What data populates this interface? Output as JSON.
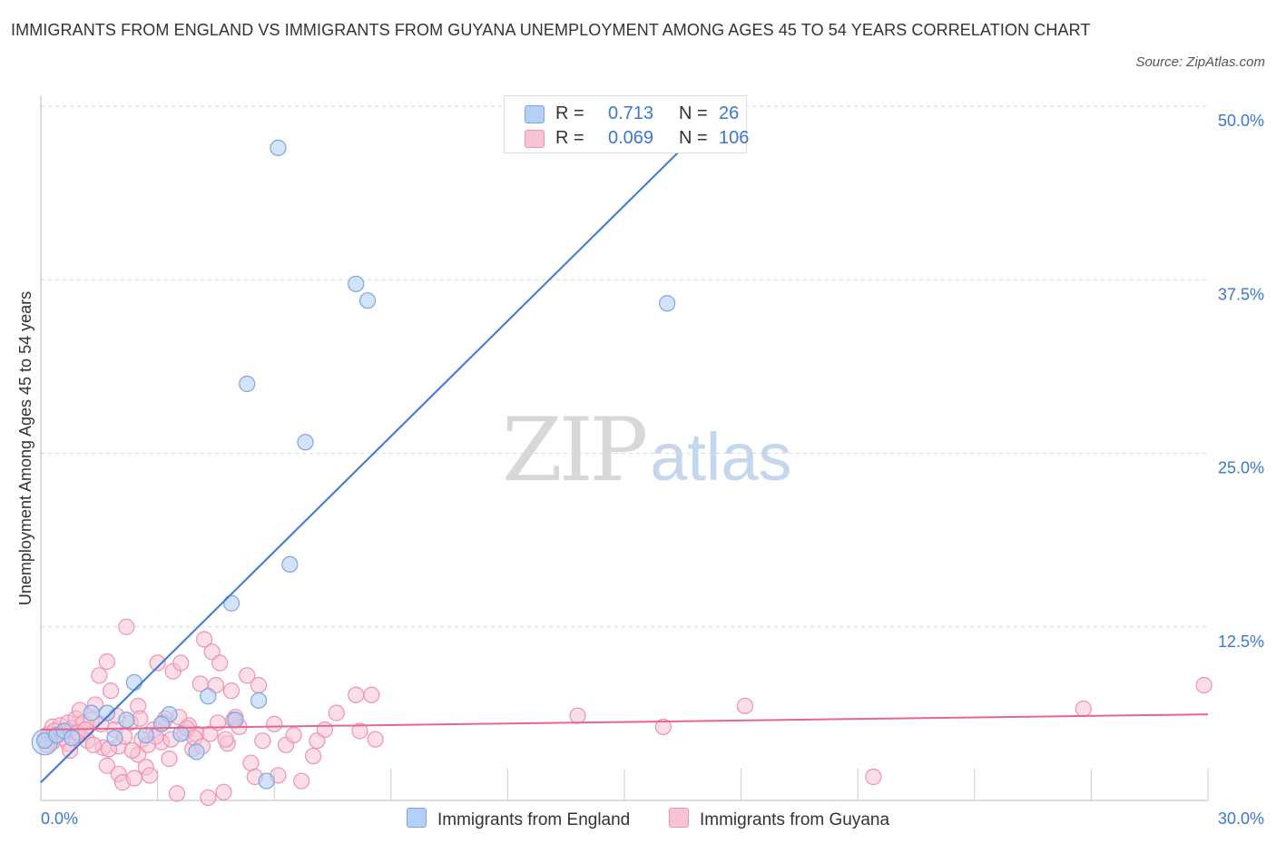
{
  "title": "IMMIGRANTS FROM ENGLAND VS IMMIGRANTS FROM GUYANA UNEMPLOYMENT AMONG AGES 45 TO 54 YEARS CORRELATION CHART",
  "source": "Source: ZipAtlas.com",
  "watermark": {
    "zip": "ZIP",
    "atlas": "atlas"
  },
  "legend_top": [
    {
      "r_label": "R =",
      "r_value": "0.713",
      "n_label": "N =",
      "n_value": "26"
    },
    {
      "r_label": "R =",
      "r_value": "0.069",
      "n_label": "N =",
      "n_value": "106"
    }
  ],
  "legend_bottom": [
    {
      "label": "Immigrants from England"
    },
    {
      "label": "Immigrants from Guyana"
    }
  ],
  "colors": {
    "england_fill": "#b6d0f5",
    "england_stroke": "#7aa6e0",
    "england_line": "#3a78d4",
    "guyana_fill": "#f8c3d4",
    "guyana_stroke": "#ef92b1",
    "guyana_line": "#e5678f",
    "grid": "#d9d9d9",
    "tick_text": "#3d77cc"
  },
  "chart_data": {
    "type": "scatter",
    "title": "IMMIGRANTS FROM ENGLAND VS IMMIGRANTS FROM GUYANA UNEMPLOYMENT AMONG AGES 45 TO 54 YEARS CORRELATION CHART",
    "xlabel": "",
    "ylabel": "Unemployment Among Ages 45 to 54 years",
    "xlim": [
      0,
      30
    ],
    "ylim": [
      0,
      50
    ],
    "x_tick_labels": [
      "0.0%",
      "30.0%"
    ],
    "y_ticks": [
      12.5,
      25.0,
      37.5,
      50.0
    ],
    "y_tick_labels": [
      "12.5%",
      "25.0%",
      "37.5%",
      "50.0%"
    ],
    "grid": "horizontal dashed",
    "legend_placement": "top-center and bottom",
    "series": [
      {
        "name": "Immigrants from England",
        "R": 0.713,
        "N": 26,
        "trend": [
          [
            0.0,
            1.3
          ],
          [
            16.5,
            47.0
          ]
        ],
        "points": [
          [
            0.1,
            4.3
          ],
          [
            0.4,
            4.7
          ],
          [
            0.6,
            5.0
          ],
          [
            0.8,
            4.5
          ],
          [
            1.3,
            6.3
          ],
          [
            1.9,
            4.5
          ],
          [
            1.7,
            6.3
          ],
          [
            2.2,
            5.8
          ],
          [
            2.4,
            8.5
          ],
          [
            2.7,
            4.7
          ],
          [
            3.3,
            6.2
          ],
          [
            3.6,
            4.8
          ],
          [
            3.1,
            5.5
          ],
          [
            4.0,
            3.5
          ],
          [
            4.3,
            7.5
          ],
          [
            4.9,
            14.2
          ],
          [
            5.3,
            30.0
          ],
          [
            5.0,
            5.8
          ],
          [
            5.6,
            7.2
          ],
          [
            5.8,
            1.4
          ],
          [
            6.1,
            47.0
          ],
          [
            6.4,
            17.0
          ],
          [
            6.8,
            25.8
          ],
          [
            8.1,
            37.2
          ],
          [
            8.4,
            36.0
          ],
          [
            16.1,
            35.8
          ]
        ]
      },
      {
        "name": "Immigrants from Guyana",
        "R": 0.069,
        "N": 106,
        "trend": [
          [
            0.0,
            5.1
          ],
          [
            30.0,
            6.2
          ]
        ],
        "points": [
          [
            0.1,
            4.4
          ],
          [
            0.2,
            4.8
          ],
          [
            0.3,
            5.3
          ],
          [
            0.3,
            4.2
          ],
          [
            0.4,
            4.6
          ],
          [
            0.5,
            5.4
          ],
          [
            0.6,
            4.9
          ],
          [
            0.7,
            5.6
          ],
          [
            0.7,
            4.1
          ],
          [
            0.8,
            5.2
          ],
          [
            0.9,
            5.9
          ],
          [
            1.0,
            4.7
          ],
          [
            1.0,
            6.5
          ],
          [
            1.1,
            5.6
          ],
          [
            1.2,
            4.3
          ],
          [
            1.3,
            5.8
          ],
          [
            1.4,
            6.9
          ],
          [
            1.5,
            9.0
          ],
          [
            1.6,
            3.8
          ],
          [
            1.7,
            10.0
          ],
          [
            1.7,
            2.5
          ],
          [
            1.8,
            7.9
          ],
          [
            1.9,
            5.1
          ],
          [
            2.0,
            3.9
          ],
          [
            2.0,
            1.9
          ],
          [
            2.1,
            1.3
          ],
          [
            2.2,
            12.5
          ],
          [
            2.3,
            5.6
          ],
          [
            2.4,
            1.6
          ],
          [
            2.5,
            6.8
          ],
          [
            2.5,
            3.3
          ],
          [
            2.6,
            4.4
          ],
          [
            2.7,
            2.4
          ],
          [
            2.8,
            1.8
          ],
          [
            2.9,
            5.1
          ],
          [
            3.0,
            9.9
          ],
          [
            3.1,
            4.2
          ],
          [
            3.2,
            5.9
          ],
          [
            3.3,
            3.0
          ],
          [
            3.4,
            9.3
          ],
          [
            3.5,
            0.5
          ],
          [
            3.6,
            9.9
          ],
          [
            3.7,
            4.9
          ],
          [
            3.8,
            5.4
          ],
          [
            3.9,
            3.7
          ],
          [
            4.0,
            4.8
          ],
          [
            4.1,
            8.4
          ],
          [
            4.2,
            11.6
          ],
          [
            4.3,
            0.2
          ],
          [
            4.4,
            10.7
          ],
          [
            4.5,
            8.3
          ],
          [
            4.6,
            9.9
          ],
          [
            4.7,
            0.6
          ],
          [
            4.8,
            4.1
          ],
          [
            4.9,
            7.9
          ],
          [
            5.0,
            6.0
          ],
          [
            5.1,
            5.3
          ],
          [
            5.3,
            9.0
          ],
          [
            5.4,
            2.7
          ],
          [
            5.5,
            1.7
          ],
          [
            5.6,
            8.3
          ],
          [
            5.7,
            4.3
          ],
          [
            6.0,
            5.5
          ],
          [
            6.1,
            1.8
          ],
          [
            6.3,
            4.0
          ],
          [
            6.5,
            4.7
          ],
          [
            6.7,
            1.4
          ],
          [
            7.0,
            3.2
          ],
          [
            7.1,
            4.3
          ],
          [
            7.3,
            5.1
          ],
          [
            7.6,
            6.3
          ],
          [
            8.1,
            7.6
          ],
          [
            8.2,
            5.0
          ],
          [
            8.5,
            7.6
          ],
          [
            8.6,
            4.4
          ],
          [
            13.8,
            6.1
          ],
          [
            16.0,
            5.3
          ],
          [
            18.1,
            6.8
          ],
          [
            21.4,
            1.7
          ],
          [
            26.8,
            6.6
          ],
          [
            29.9,
            8.3
          ],
          [
            0.15,
            4.0
          ],
          [
            0.35,
            5.0
          ],
          [
            0.55,
            4.5
          ],
          [
            0.75,
            3.6
          ],
          [
            0.95,
            4.9
          ],
          [
            1.15,
            5.1
          ],
          [
            1.35,
            4.0
          ],
          [
            1.55,
            5.5
          ],
          [
            1.75,
            3.7
          ],
          [
            1.95,
            6.1
          ],
          [
            2.15,
            4.6
          ],
          [
            2.35,
            3.6
          ],
          [
            2.55,
            5.9
          ],
          [
            2.75,
            4.0
          ],
          [
            2.95,
            4.6
          ],
          [
            3.15,
            5.6
          ],
          [
            3.35,
            4.4
          ],
          [
            3.55,
            6.0
          ],
          [
            3.75,
            5.2
          ],
          [
            3.95,
            4.5
          ],
          [
            4.15,
            3.9
          ],
          [
            4.35,
            4.8
          ],
          [
            4.55,
            5.6
          ],
          [
            4.75,
            4.4
          ],
          [
            4.95,
            5.8
          ]
        ]
      }
    ]
  }
}
